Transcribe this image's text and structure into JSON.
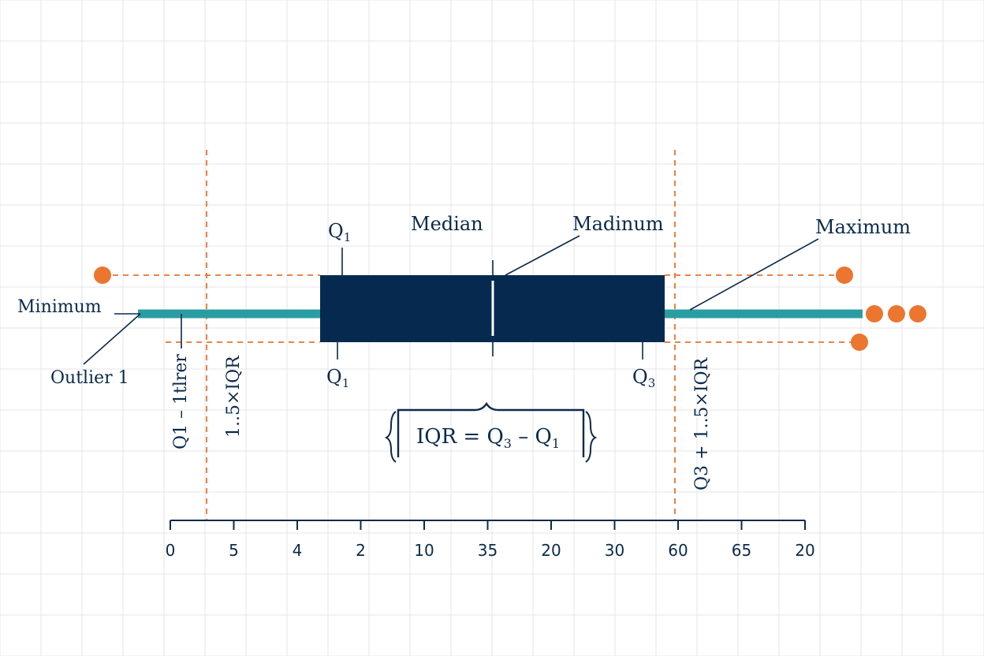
{
  "colors": {
    "grid": "#e4e6ea",
    "box": "#062a4f",
    "whisker": "#2a9da3",
    "fence": "#e8742e",
    "outlier": "#ec7530",
    "text": "#0b2a4a",
    "axis": "#0b2a4a"
  },
  "labels": {
    "q1_top": "Q",
    "q1_top_sub": "1",
    "median": "Median",
    "madinum": "Madinum",
    "maximum": "Maximum",
    "minimum": "Minimum",
    "outlier1": "Outlier 1",
    "q1_bottom": "Q",
    "q1_bottom_sub": "1",
    "q3_bottom": "Q",
    "q3_bottom_sub": "3",
    "lower_fence_formula": "Q1 – 1tlrer",
    "lower_fence_iqr": "1..5×IQR",
    "upper_fence_formula": "Q3 + 1..5×IQR",
    "iqr_formula_main": "IQR = Q",
    "iqr_formula_sub3": "3",
    "iqr_formula_minus": " – Q",
    "iqr_formula_sub1": "1"
  },
  "axis": {
    "ticks": [
      "0",
      "5",
      "4",
      "2",
      "10",
      "35",
      "20",
      "30",
      "60",
      "65",
      "20"
    ]
  },
  "icons": {
    "brace_top": "curly-brace-icon",
    "outlier": "outlier-dot-icon"
  }
}
